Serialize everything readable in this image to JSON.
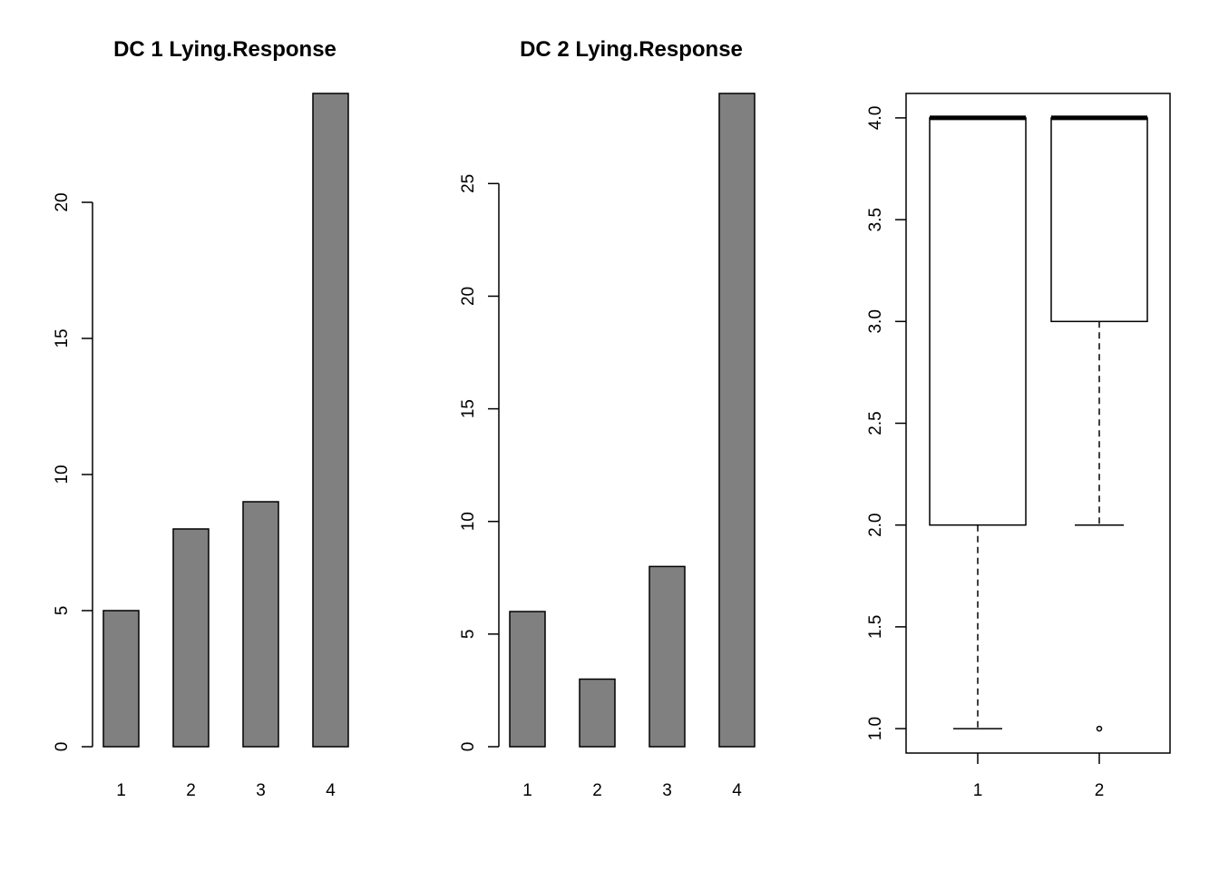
{
  "chart_data": [
    {
      "type": "bar",
      "title": "DC 1 Lying.Response",
      "categories": [
        "1",
        "2",
        "3",
        "4"
      ],
      "values": [
        5,
        8,
        9,
        24
      ],
      "ylim": [
        0,
        24
      ],
      "yticks": [
        0,
        5,
        10,
        15,
        20
      ],
      "bar_color": "#808080",
      "grid": false
    },
    {
      "type": "bar",
      "title": "DC 2 Lying.Response",
      "categories": [
        "1",
        "2",
        "3",
        "4"
      ],
      "values": [
        6,
        3,
        8,
        29
      ],
      "ylim": [
        0,
        29
      ],
      "yticks": [
        0,
        5,
        10,
        15,
        20,
        25
      ],
      "bar_color": "#808080",
      "grid": false
    },
    {
      "type": "boxplot",
      "title": "",
      "categories": [
        "1",
        "2"
      ],
      "boxes": [
        {
          "whisker_low": 1.0,
          "q1": 2.0,
          "median": 4.0,
          "q3": 4.0,
          "whisker_high": 4.0,
          "outliers": []
        },
        {
          "whisker_low": 2.0,
          "q1": 3.0,
          "median": 4.0,
          "q3": 4.0,
          "whisker_high": 4.0,
          "outliers": [
            1.0
          ]
        }
      ],
      "ylim": [
        0.88,
        4.12
      ],
      "yticks": [
        "1.0",
        "1.5",
        "2.0",
        "2.5",
        "3.0",
        "3.5",
        "4.0"
      ],
      "grid": false
    }
  ]
}
